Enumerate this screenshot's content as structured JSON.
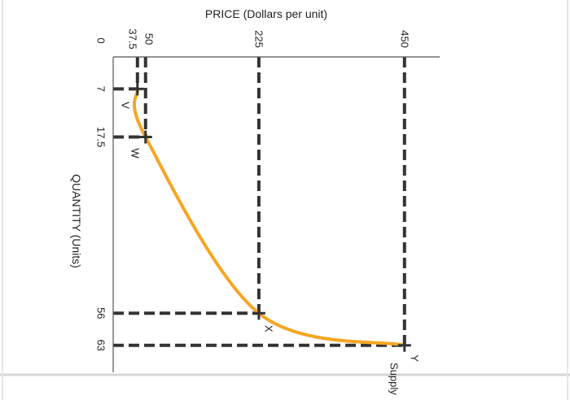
{
  "chart_data": {
    "type": "line",
    "xlabel": "QUANTITY (Units)",
    "ylabel": "PRICE (Dollars per unit)",
    "xlim": [
      0,
      70
    ],
    "ylim": [
      0,
      500
    ],
    "x_ticks": [
      "0",
      "7",
      "17.5",
      "56",
      "63"
    ],
    "y_ticks": [
      "37.5",
      "50",
      "225",
      "450"
    ],
    "series": [
      {
        "name": "Supply",
        "x": [
          7,
          17.5,
          56,
          63
        ],
        "y": [
          37.5,
          50,
          225,
          450
        ]
      }
    ],
    "points": [
      {
        "label": "V",
        "x": 7,
        "y": 37.5
      },
      {
        "label": "W",
        "x": 17.5,
        "y": 50
      },
      {
        "label": "X",
        "x": 56,
        "y": 225
      },
      {
        "label": "Y",
        "x": 63,
        "y": 450
      }
    ],
    "colors": {
      "curve": "#f5a623",
      "guides": "#333333",
      "axis": "#555555"
    }
  }
}
